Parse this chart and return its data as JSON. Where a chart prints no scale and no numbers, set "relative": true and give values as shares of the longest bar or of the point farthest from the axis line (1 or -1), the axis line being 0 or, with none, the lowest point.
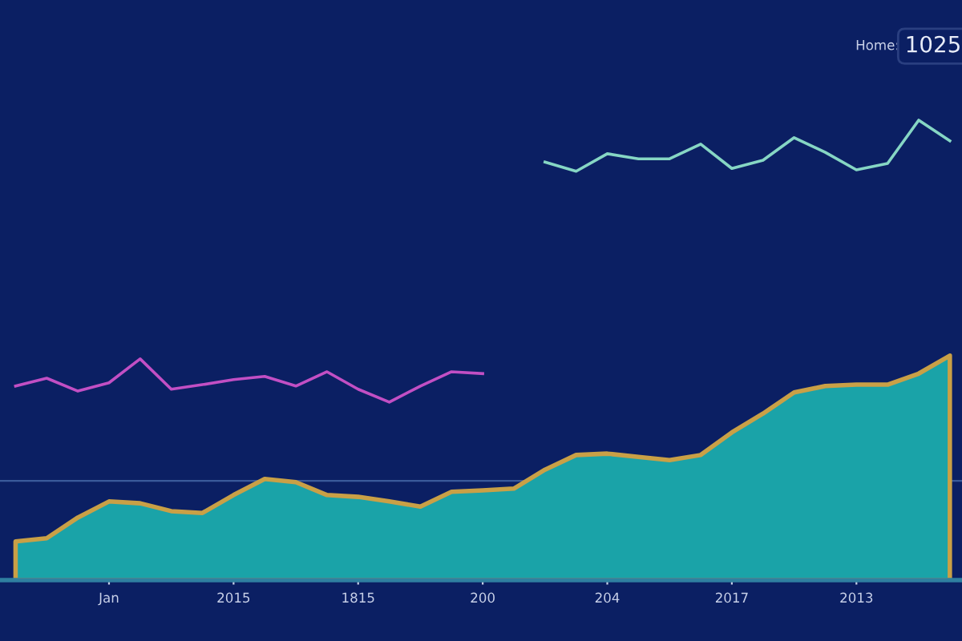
{
  "chart_data": {
    "type": "area",
    "relative": true,
    "tick_labels": "x",
    "categories": [
      null,
      null,
      null,
      "Jan",
      null,
      null,
      null,
      "2015",
      null,
      null,
      null,
      "1815",
      null,
      null,
      null,
      "200",
      null,
      null,
      null,
      "204",
      null,
      null,
      null,
      "2017",
      null,
      null,
      null,
      "2013",
      null,
      null,
      null
    ],
    "series": [
      {
        "color": "#1aa3a8",
        "values": [
          0.084,
          0.091,
          0.136,
          0.171,
          0.167,
          0.15,
          0.146,
          0.185,
          0.22,
          0.213,
          0.185,
          0.181,
          0.171,
          0.16,
          0.192,
          0.195,
          0.199,
          0.24,
          0.272,
          0.275,
          0.268,
          0.261,
          0.272,
          0.321,
          0.362,
          0.408,
          0.422,
          0.425,
          0.425,
          0.449,
          0.488
        ]
      },
      {
        "type": "line",
        "color": "#c24fc4",
        "values": [
          0.422,
          0.439,
          0.411,
          0.429,
          0.481,
          0.415,
          0.425,
          0.436,
          0.443,
          0.422,
          0.453,
          0.415,
          0.387,
          0.422,
          0.453,
          0.449,
          null,
          null,
          null,
          null,
          null,
          null,
          null,
          null,
          null,
          null,
          null,
          null,
          null,
          null,
          null
        ]
      },
      {
        "type": "line",
        "color": "#86d6c4",
        "values": [
          null,
          null,
          null,
          null,
          null,
          null,
          null,
          null,
          null,
          null,
          null,
          null,
          null,
          null,
          null,
          null,
          null,
          0.909,
          0.889,
          0.927,
          0.916,
          0.916,
          0.948,
          0.895,
          0.913,
          0.962,
          0.93,
          0.892,
          0.906,
          1.0,
          0.955
        ]
      }
    ],
    "ref_lines": [
      {
        "axis": "y",
        "value": 0.216,
        "color": "#3a5a9a"
      }
    ],
    "annotations": [
      "Home:",
      "1025"
    ]
  }
}
